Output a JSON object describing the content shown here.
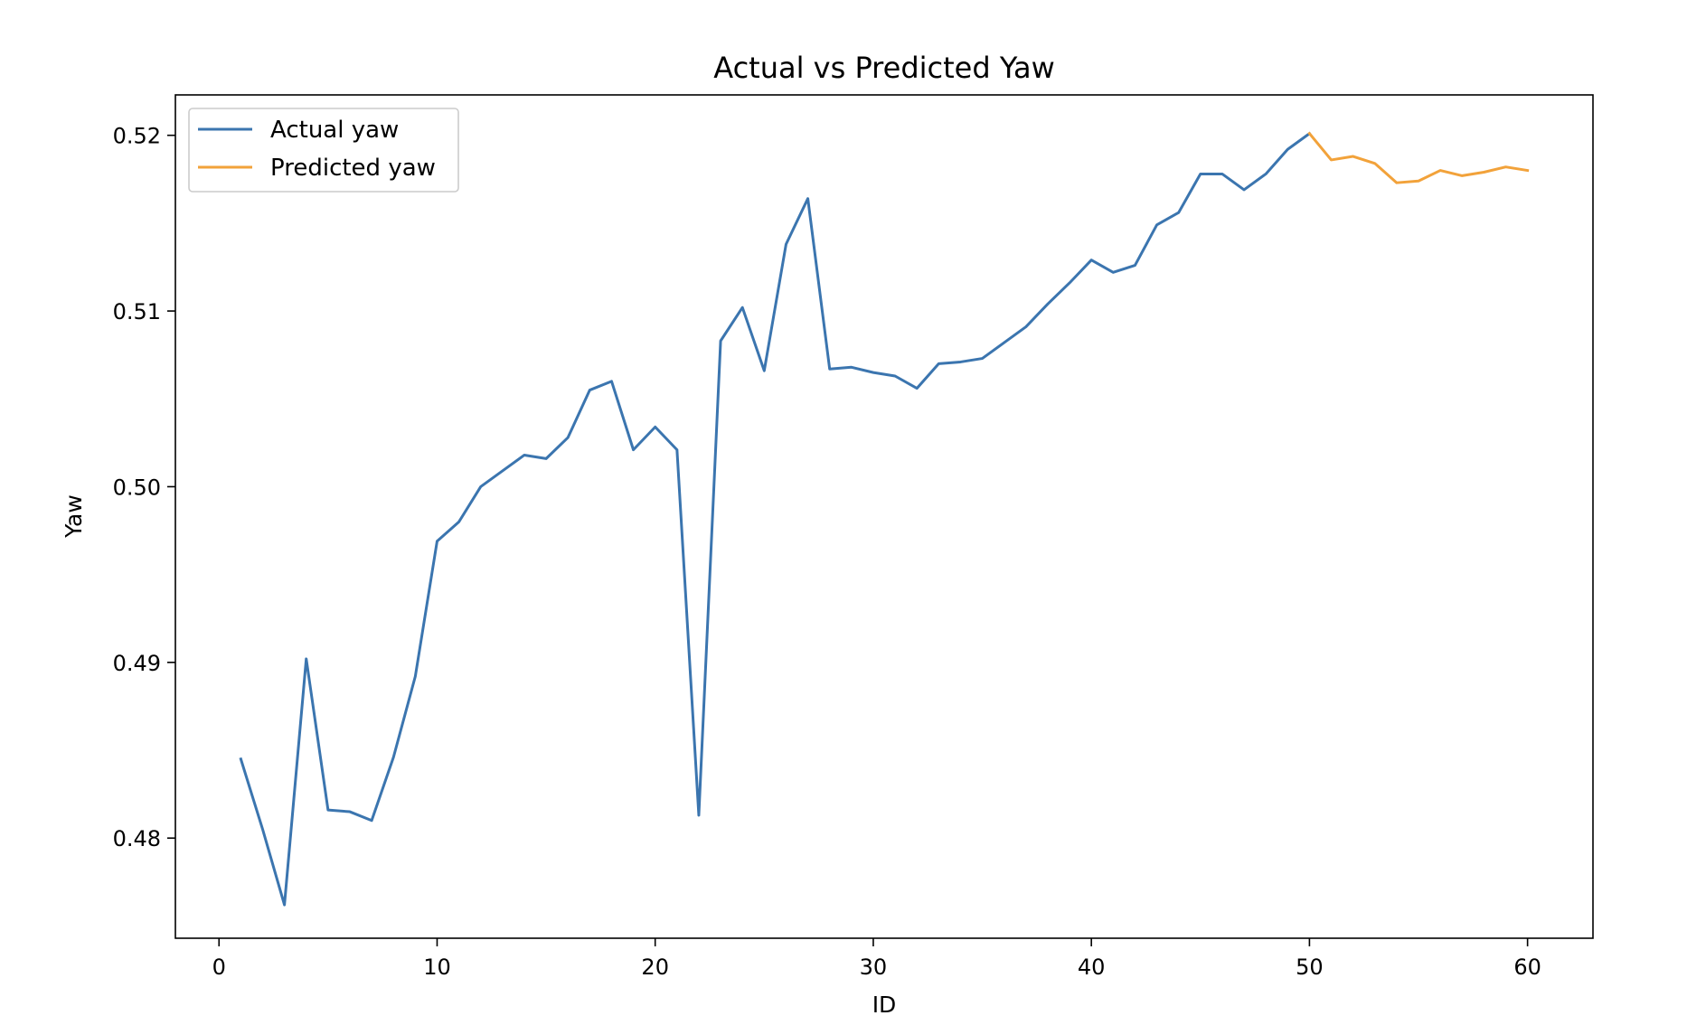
{
  "chart_data": {
    "type": "line",
    "title": "Actual vs Predicted Yaw",
    "xlabel": "ID",
    "ylabel": "Yaw",
    "xlim": [
      -2,
      63
    ],
    "ylim": [
      0.4743,
      0.5223
    ],
    "xticks": [
      0,
      10,
      20,
      30,
      40,
      50,
      60
    ],
    "xtick_labels": [
      "0",
      "10",
      "20",
      "30",
      "40",
      "50",
      "60"
    ],
    "yticks": [
      0.48,
      0.49,
      0.5,
      0.51,
      0.52
    ],
    "ytick_labels": [
      "0.48",
      "0.49",
      "0.50",
      "0.51",
      "0.52"
    ],
    "grid": false,
    "legend_position": "top-left",
    "series": [
      {
        "name": "Actual yaw",
        "color": "#3b75af",
        "x": [
          1,
          2,
          3,
          4,
          5,
          6,
          7,
          8,
          9,
          10,
          11,
          12,
          13,
          14,
          15,
          16,
          17,
          18,
          19,
          20,
          21,
          22,
          23,
          24,
          25,
          26,
          27,
          28,
          29,
          30,
          31,
          32,
          33,
          34,
          35,
          36,
          37,
          38,
          39,
          40,
          41,
          42,
          43,
          44,
          45,
          46,
          47,
          48,
          49,
          50
        ],
        "y": [
          0.4845,
          0.4805,
          0.4762,
          0.4902,
          0.4816,
          0.4815,
          0.481,
          0.4846,
          0.4892,
          0.4969,
          0.498,
          0.5,
          0.5009,
          0.5018,
          0.5016,
          0.5028,
          0.5055,
          0.506,
          0.5021,
          0.5034,
          0.5021,
          0.4813,
          0.5083,
          0.5102,
          0.5066,
          0.5138,
          0.5164,
          0.5067,
          0.5068,
          0.5065,
          0.5063,
          0.5056,
          0.507,
          0.5071,
          0.5073,
          0.5082,
          0.5091,
          0.5104,
          0.5116,
          0.5129,
          0.5122,
          0.5126,
          0.5149,
          0.5156,
          0.5178,
          0.5178,
          0.5169,
          0.5178,
          0.5192,
          0.5201
        ]
      },
      {
        "name": "Predicted yaw",
        "color": "#f2a23a",
        "x": [
          50,
          51,
          52,
          53,
          54,
          55,
          56,
          57,
          58,
          59,
          60
        ],
        "y": [
          0.5201,
          0.5186,
          0.5188,
          0.5184,
          0.5173,
          0.5174,
          0.518,
          0.5177,
          0.5179,
          0.5182,
          0.518
        ]
      }
    ]
  }
}
